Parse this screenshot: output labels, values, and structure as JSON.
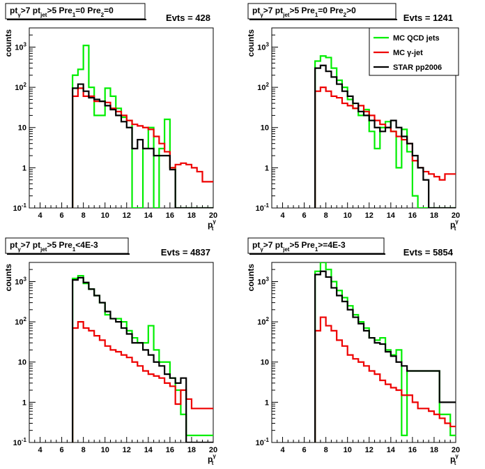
{
  "colors": {
    "mc_qcd": "#00ee00",
    "mc_gamma": "#ee0000",
    "star": "#000000",
    "frame": "#000000",
    "background": "#ffffff"
  },
  "chart_data": [
    {
      "type": "line",
      "title_parts": {
        "pt": "pt",
        "gamma_sub": "γ",
        "gt7": ">7",
        "pt2": "pt",
        "jet_sub": "jet",
        "rest": ">5 Pre",
        "cut_a": "=0 Pre",
        "sub1": "1",
        "sub2": "2",
        "cut_b": "=0"
      },
      "title": "pt_γ>7 pt_jet>5 Pre_1=0 Pre_2=0",
      "evts": "Evts = 428",
      "ylabel": "counts",
      "xlabel": "p_t^γ",
      "xlim": [
        3,
        20
      ],
      "ylim": [
        0.1,
        3000
      ],
      "yscale": "log",
      "xticks": [
        "4",
        "6",
        "8",
        "10",
        "12",
        "14",
        "16",
        "18",
        "20"
      ],
      "yticks": [
        "10^-1",
        "1",
        "10",
        "10^2",
        "10^3"
      ],
      "x_edges": [
        7,
        7.5,
        8,
        8.5,
        9,
        9.5,
        10,
        10.5,
        11,
        11.5,
        12,
        12.5,
        13,
        13.5,
        14,
        14.5,
        15,
        15.5,
        16,
        16.5,
        17,
        17.5,
        18,
        18.5,
        19,
        19.5,
        20
      ],
      "series": [
        {
          "name": "MC QCD jets",
          "values": [
            200,
            280,
            1100,
            100,
            20,
            20,
            95,
            60,
            30,
            18,
            15,
            0.1,
            0.1,
            3,
            10,
            0.1,
            3,
            16,
            1,
            0.1,
            0.1,
            0.1,
            0.1,
            0.1,
            0.1,
            0.1
          ]
        },
        {
          "name": "MC γ-jet",
          "values": [
            60,
            95,
            60,
            60,
            45,
            45,
            42,
            30,
            25,
            20,
            15,
            12,
            11,
            10,
            9,
            6,
            4,
            2.5,
            1,
            1.2,
            1.3,
            1.2,
            1,
            0.8,
            0.45,
            0.45
          ]
        },
        {
          "name": "STAR pp2006",
          "values": [
            95,
            120,
            80,
            55,
            50,
            45,
            35,
            28,
            20,
            14,
            10,
            3,
            5,
            3,
            3,
            2,
            2,
            2,
            0.9,
            0.1,
            0.1,
            0.1,
            0.1,
            0.1,
            0.1,
            0.1
          ]
        }
      ]
    },
    {
      "type": "line",
      "title": "pt_γ>7 pt_jet>5 Pre_1=0 Pre_2>0",
      "title_parts": {
        "pt": "pt",
        "gamma_sub": "γ",
        "gt7": ">7",
        "pt2": "pt",
        "jet_sub": "jet",
        "rest": ">5 Pre",
        "cut_a": "=0 Pre",
        "sub1": "1",
        "sub2": "2",
        "cut_b": ">0"
      },
      "evts": "Evts = 1241",
      "ylabel": "counts",
      "xlabel": "p_t^γ",
      "xlim": [
        3,
        20
      ],
      "ylim": [
        0.1,
        3000
      ],
      "yscale": "log",
      "xticks": [
        "4",
        "6",
        "8",
        "10",
        "12",
        "14",
        "16",
        "18",
        "20"
      ],
      "yticks": [
        "10^-1",
        "1",
        "10",
        "10^2",
        "10^3"
      ],
      "x_edges": [
        7,
        7.5,
        8,
        8.5,
        9,
        9.5,
        10,
        10.5,
        11,
        11.5,
        12,
        12.5,
        13,
        13.5,
        14,
        14.5,
        15,
        15.5,
        16,
        16.5,
        17,
        17.5,
        18,
        18.5,
        19,
        19.5,
        20
      ],
      "series": [
        {
          "name": "MC QCD jets",
          "values": [
            450,
            600,
            550,
            300,
            150,
            100,
            50,
            30,
            20,
            28,
            8,
            3,
            10,
            14,
            8,
            1,
            9,
            2.5,
            0.2,
            0.1,
            0.1,
            0.1,
            0.1,
            0.1,
            0.1,
            0.1
          ]
        },
        {
          "name": "MC γ-jet",
          "values": [
            80,
            100,
            80,
            60,
            55,
            40,
            35,
            30,
            35,
            25,
            20,
            15,
            12,
            10,
            8,
            6,
            5,
            4,
            1.5,
            1,
            0.8,
            0.7,
            0.6,
            0.5,
            0.7,
            0.7
          ]
        },
        {
          "name": "STAR pp2006",
          "values": [
            300,
            350,
            250,
            180,
            120,
            80,
            60,
            40,
            25,
            20,
            15,
            10,
            8,
            10,
            15,
            10,
            6,
            4,
            2,
            1,
            0.5,
            0.1,
            0.1,
            0.1,
            0.1,
            0.1
          ]
        }
      ],
      "legend": {
        "position": "top-right",
        "entries": [
          "MC QCD jets",
          "MC γ-jet",
          "STAR pp2006"
        ]
      }
    },
    {
      "type": "line",
      "title": "pt_γ>7 pt_jet>5 Pre_1<4E-3",
      "title_parts": {
        "pt": "pt",
        "gamma_sub": "γ",
        "gt7": ">7",
        "pt2": "pt",
        "jet_sub": "jet",
        "rest": ">5 Pre",
        "cut_a": "<4E-3",
        "sub1": "1",
        "sub2": "",
        "cut_b": ""
      },
      "evts": "Evts = 4837",
      "ylabel": "counts",
      "xlabel": "p_t^γ",
      "xlim": [
        3,
        20
      ],
      "ylim": [
        0.1,
        3000
      ],
      "yscale": "log",
      "xticks": [
        "4",
        "6",
        "8",
        "10",
        "12",
        "14",
        "16",
        "18",
        "20"
      ],
      "yticks": [
        "10^-1",
        "1",
        "10",
        "10^2",
        "10^3"
      ],
      "x_edges": [
        7,
        7.5,
        8,
        8.5,
        9,
        9.5,
        10,
        10.5,
        11,
        11.5,
        12,
        12.5,
        13,
        13.5,
        14,
        14.5,
        15,
        15.5,
        16,
        16.5,
        17,
        17.5,
        18,
        18.5,
        19,
        19.5,
        20
      ],
      "series": [
        {
          "name": "MC QCD jets",
          "values": [
            1200,
            1400,
            900,
            650,
            450,
            300,
            150,
            120,
            120,
            100,
            60,
            40,
            30,
            30,
            80,
            20,
            10,
            10,
            4,
            2,
            0.5,
            0.15,
            0.15,
            0.15,
            0.15,
            0.15
          ]
        },
        {
          "name": "MC γ-jet",
          "values": [
            70,
            100,
            70,
            60,
            45,
            35,
            25,
            20,
            18,
            15,
            13,
            10,
            8,
            6,
            5,
            4.5,
            4,
            3,
            2.5,
            0.9,
            2,
            1.2,
            0.7,
            0.7,
            0.7,
            0.7
          ]
        },
        {
          "name": "STAR pp2006",
          "values": [
            1100,
            1250,
            950,
            650,
            450,
            300,
            180,
            120,
            100,
            70,
            50,
            30,
            30,
            20,
            15,
            10,
            8,
            5,
            4,
            3,
            4,
            0.1,
            0.1,
            0.1,
            0.1,
            0.1
          ]
        }
      ]
    },
    {
      "type": "line",
      "title": "pt_γ>7 pt_jet>5 Pre_1>=4E-3",
      "title_parts": {
        "pt": "pt",
        "gamma_sub": "γ",
        "gt7": ">7",
        "pt2": "pt",
        "jet_sub": "jet",
        "rest": ">5 Pre",
        "cut_a": ">=4E-3",
        "sub1": "1",
        "sub2": "",
        "cut_b": ""
      },
      "evts": "Evts = 5854",
      "ylabel": "counts",
      "xlabel": "p_t^γ",
      "xlim": [
        3,
        20
      ],
      "ylim": [
        0.1,
        3000
      ],
      "yscale": "log",
      "xticks": [
        "4",
        "6",
        "8",
        "10",
        "12",
        "14",
        "16",
        "18",
        "20"
      ],
      "yticks": [
        "10^-1",
        "1",
        "10",
        "10^2",
        "10^3"
      ],
      "x_edges": [
        7,
        7.5,
        8,
        8.5,
        9,
        9.5,
        10,
        10.5,
        11,
        11.5,
        12,
        12.5,
        13,
        13.5,
        14,
        14.5,
        15,
        15.5,
        16,
        16.5,
        17,
        17.5,
        18,
        18.5,
        19,
        19.5,
        20
      ],
      "series": [
        {
          "name": "MC QCD jets",
          "values": [
            1800,
            3000,
            2000,
            1000,
            600,
            400,
            250,
            150,
            100,
            70,
            40,
            35,
            40,
            20,
            15,
            20,
            0.15,
            6,
            6,
            6,
            6,
            6,
            6,
            0.5,
            0.5,
            0.15
          ]
        },
        {
          "name": "MC γ-jet",
          "values": [
            60,
            130,
            80,
            60,
            35,
            25,
            15,
            12,
            10,
            8,
            6,
            5,
            3.5,
            2.8,
            2.3,
            2,
            1.5,
            1.5,
            1,
            0.7,
            0.7,
            0.6,
            0.5,
            0.4,
            0.3,
            0.25
          ]
        },
        {
          "name": "STAR pp2006",
          "values": [
            1500,
            1800,
            1300,
            700,
            450,
            320,
            200,
            130,
            90,
            60,
            40,
            30,
            28,
            18,
            14,
            10,
            8,
            6,
            6,
            6,
            6,
            6,
            6,
            1,
            1,
            1
          ]
        }
      ]
    }
  ]
}
